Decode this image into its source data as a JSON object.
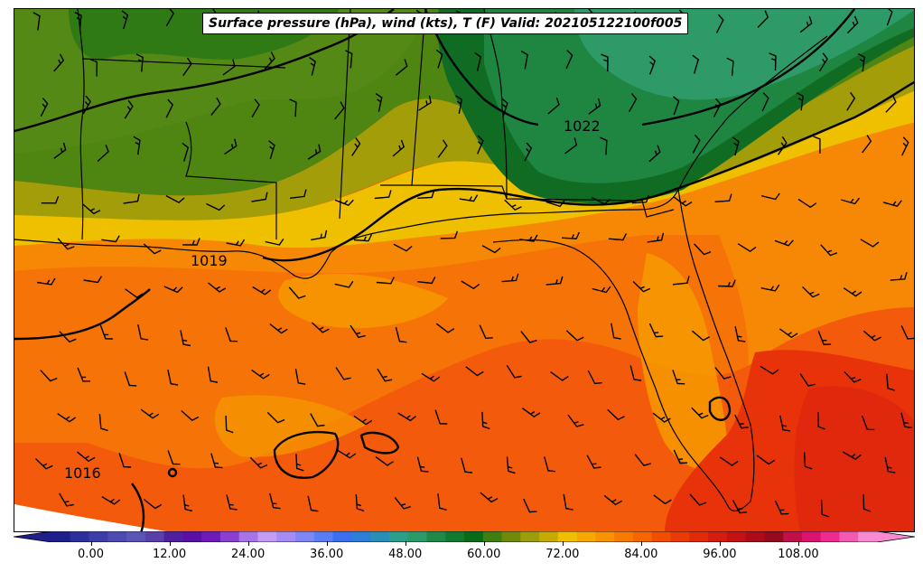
{
  "title": "Surface pressure (hPa), wind (kts), T (F) Valid: 202105122100f005",
  "isobar_labels": [
    "1022",
    "1019",
    "1016"
  ],
  "colorbar": {
    "min": -6,
    "max": 120,
    "step": 3,
    "tick_labels": [
      "0.00",
      "12.00",
      "24.00",
      "36.00",
      "48.00",
      "60.00",
      "72.00",
      "84.00",
      "96.00",
      "108.00"
    ],
    "tick_values": [
      0,
      12,
      24,
      36,
      48,
      60,
      72,
      84,
      96,
      108
    ],
    "colors": [
      "#1f1f8c",
      "#2e2e9c",
      "#3d3da8",
      "#4b4bb0",
      "#5a56b4",
      "#5a3fa8",
      "#4f1fa0",
      "#5b0fa6",
      "#6e1ab8",
      "#8a3fd0",
      "#a873e6",
      "#c49cf4",
      "#a48cf4",
      "#7f86f6",
      "#5a7cf4",
      "#3b6ff0",
      "#2b7fd8",
      "#2a8fb8",
      "#2b9e8c",
      "#2a9a68",
      "#1f8a48",
      "#107a30",
      "#066c18",
      "#3f7f12",
      "#6f8a0a",
      "#9c9d0a",
      "#c6aa04",
      "#efc000",
      "#f7a800",
      "#f99200",
      "#f77b00",
      "#f56500",
      "#f24e00",
      "#ea3a06",
      "#e02a0a",
      "#d41c10",
      "#c21214",
      "#ac0c18",
      "#960a20",
      "#c0104a",
      "#dc1270",
      "#ee2a90",
      "#f45ab4",
      "#f98ad2"
    ]
  },
  "colors": {
    "isobar": "#000000",
    "coastline": "#000000",
    "barb": "#000000"
  }
}
